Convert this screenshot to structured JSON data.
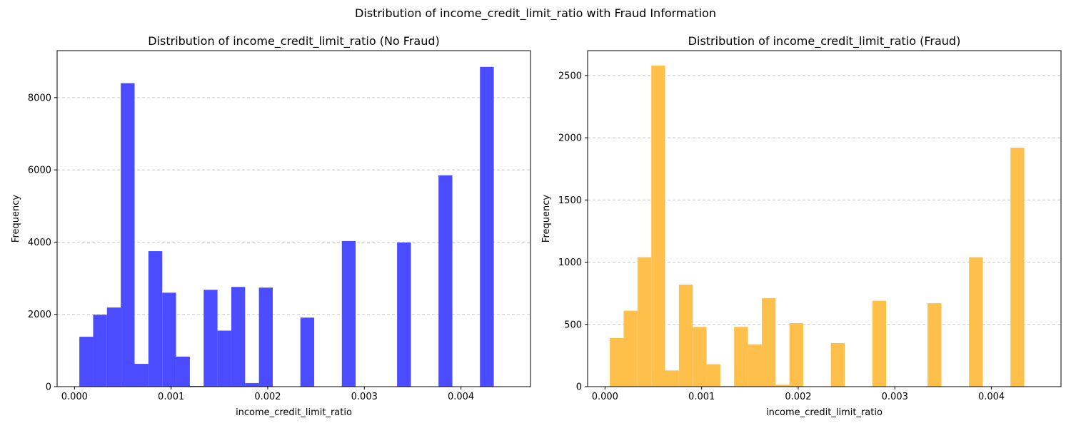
{
  "figure": {
    "suptitle": "Distribution of income_credit_limit_ratio with Fraud Information"
  },
  "chart_data": [
    {
      "type": "bar",
      "title": "Distribution of income_credit_limit_ratio (No Fraud)",
      "xlabel": "income_credit_limit_ratio",
      "ylabel": "Frequency",
      "color": "#4b4bff",
      "xlim": [
        -0.00018,
        0.00472
      ],
      "ylim": [
        0,
        9300
      ],
      "xticks": [
        0.0,
        0.001,
        0.002,
        0.003,
        0.004
      ],
      "xtick_labels": [
        "0.000",
        "0.001",
        "0.002",
        "0.003",
        "0.004"
      ],
      "yticks": [
        0,
        2000,
        4000,
        6000,
        8000
      ],
      "ytick_labels": [
        "0",
        "2000",
        "4000",
        "6000",
        "8000"
      ],
      "grid": "y-dashed",
      "bin_width": 0.000143,
      "bin_starts": [
        5e-05,
        0.000193,
        0.000336,
        0.000479,
        0.000622,
        0.000765,
        0.000908,
        0.001051,
        0.001194,
        0.001337,
        0.00148,
        0.001623,
        0.001766,
        0.001909,
        0.002052,
        0.002195,
        0.002338,
        0.002481,
        0.002624,
        0.002767,
        0.00291,
        0.003053,
        0.003196,
        0.003339,
        0.003482,
        0.003625,
        0.003768,
        0.003911,
        0.004054,
        0.004197,
        0.00434
      ],
      "values": [
        1380,
        1990,
        2190,
        8400,
        630,
        3750,
        2600,
        830,
        20,
        2680,
        1550,
        2760,
        100,
        2740,
        0,
        0,
        1910,
        0,
        0,
        4030,
        0,
        0,
        0,
        3990,
        0,
        10,
        5850,
        0,
        0,
        8850,
        0
      ]
    },
    {
      "type": "bar",
      "title": "Distribution of income_credit_limit_ratio (Fraud)",
      "xlabel": "income_credit_limit_ratio",
      "ylabel": "Frequency",
      "color": "#ffbf4b",
      "xlim": [
        -0.00018,
        0.00472
      ],
      "ylim": [
        0,
        2700
      ],
      "xticks": [
        0.0,
        0.001,
        0.002,
        0.003,
        0.004
      ],
      "xtick_labels": [
        "0.000",
        "0.001",
        "0.002",
        "0.003",
        "0.004"
      ],
      "yticks": [
        0,
        500,
        1000,
        1500,
        2000,
        2500
      ],
      "ytick_labels": [
        "0",
        "500",
        "1000",
        "1500",
        "2000",
        "2500"
      ],
      "grid": "y-dashed",
      "bin_width": 0.000143,
      "bin_starts": [
        5e-05,
        0.000193,
        0.000336,
        0.000479,
        0.000622,
        0.000765,
        0.000908,
        0.001051,
        0.001194,
        0.001337,
        0.00148,
        0.001623,
        0.001766,
        0.001909,
        0.002052,
        0.002195,
        0.002338,
        0.002481,
        0.002624,
        0.002767,
        0.00291,
        0.003053,
        0.003196,
        0.003339,
        0.003482,
        0.003625,
        0.003768,
        0.003911,
        0.004054,
        0.004197,
        0.00434
      ],
      "values": [
        390,
        610,
        1040,
        2580,
        130,
        820,
        480,
        180,
        5,
        480,
        340,
        710,
        15,
        510,
        0,
        0,
        350,
        0,
        0,
        690,
        0,
        0,
        0,
        670,
        0,
        0,
        1040,
        0,
        0,
        1920,
        0
      ]
    }
  ]
}
